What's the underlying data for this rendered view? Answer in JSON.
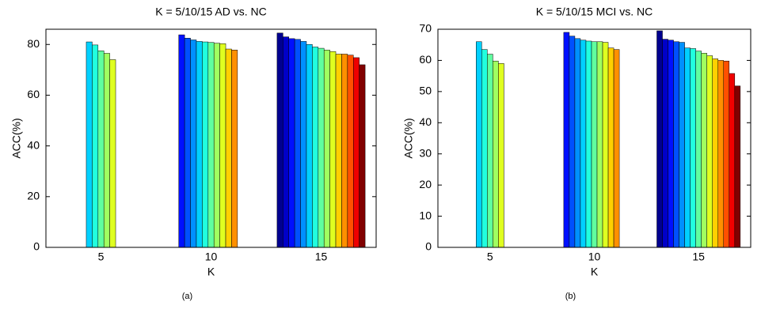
{
  "chart_data": [
    {
      "type": "bar",
      "title": "K = 5/10/15 AD vs. NC",
      "xlabel": "K",
      "ylabel": "ACC(%)",
      "caption": "(a)",
      "categories": [
        "5",
        "10",
        "15"
      ],
      "ylim": [
        0,
        86
      ],
      "yticks": [
        0,
        20,
        40,
        60,
        80
      ],
      "series": [
        {
          "color": "#00008f",
          "values": [
            null,
            null,
            84.5
          ]
        },
        {
          "color": "#0000c8",
          "values": [
            null,
            null,
            83
          ]
        },
        {
          "color": "#0010ff",
          "values": [
            null,
            83.8,
            82.3
          ]
        },
        {
          "color": "#0050ff",
          "values": [
            null,
            82.5,
            82
          ]
        },
        {
          "color": "#0090ff",
          "values": [
            null,
            81.8,
            81.2
          ]
        },
        {
          "color": "#00d0ff",
          "values": [
            81,
            81.2,
            80
          ]
        },
        {
          "color": "#20ffdf",
          "values": [
            79.8,
            81,
            79
          ]
        },
        {
          "color": "#60ff9f",
          "values": [
            77.5,
            80.8,
            78.5
          ]
        },
        {
          "color": "#a0ff60",
          "values": [
            76.5,
            80.5,
            77.8
          ]
        },
        {
          "color": "#dfff20",
          "values": [
            74,
            80.3,
            77.2
          ]
        },
        {
          "color": "#ffd000",
          "values": [
            null,
            78.2,
            76.2
          ]
        },
        {
          "color": "#ff9000",
          "values": [
            null,
            77.8,
            76.2
          ]
        },
        {
          "color": "#ff5000",
          "values": [
            null,
            null,
            75.8
          ]
        },
        {
          "color": "#ef0000",
          "values": [
            null,
            null,
            74.8
          ]
        },
        {
          "color": "#800000",
          "values": [
            null,
            null,
            72
          ]
        }
      ]
    },
    {
      "type": "bar",
      "title": "K = 5/10/15 MCI vs. NC",
      "xlabel": "K",
      "ylabel": "ACC(%)",
      "caption": "(b)",
      "categories": [
        "5",
        "10",
        "15"
      ],
      "ylim": [
        0,
        70
      ],
      "yticks": [
        0,
        10,
        20,
        30,
        40,
        50,
        60,
        70
      ],
      "series": [
        {
          "color": "#00008f",
          "values": [
            null,
            null,
            69.5
          ]
        },
        {
          "color": "#0000c8",
          "values": [
            null,
            null,
            66.8
          ]
        },
        {
          "color": "#0010ff",
          "values": [
            null,
            69,
            66.5
          ]
        },
        {
          "color": "#0050ff",
          "values": [
            null,
            67.8,
            66
          ]
        },
        {
          "color": "#0090ff",
          "values": [
            null,
            67,
            65.8
          ]
        },
        {
          "color": "#00d0ff",
          "values": [
            66,
            66.5,
            64
          ]
        },
        {
          "color": "#20ffdf",
          "values": [
            63.5,
            66.2,
            63.8
          ]
        },
        {
          "color": "#60ff9f",
          "values": [
            62,
            66,
            63
          ]
        },
        {
          "color": "#a0ff60",
          "values": [
            59.8,
            66,
            62.3
          ]
        },
        {
          "color": "#dfff20",
          "values": [
            59,
            65.8,
            61.5
          ]
        },
        {
          "color": "#ffd000",
          "values": [
            null,
            64,
            60.5
          ]
        },
        {
          "color": "#ff9000",
          "values": [
            null,
            63.5,
            60
          ]
        },
        {
          "color": "#ff5000",
          "values": [
            null,
            null,
            59.8
          ]
        },
        {
          "color": "#ef0000",
          "values": [
            null,
            null,
            55.8
          ]
        },
        {
          "color": "#800000",
          "values": [
            null,
            null,
            51.8
          ]
        }
      ]
    }
  ]
}
